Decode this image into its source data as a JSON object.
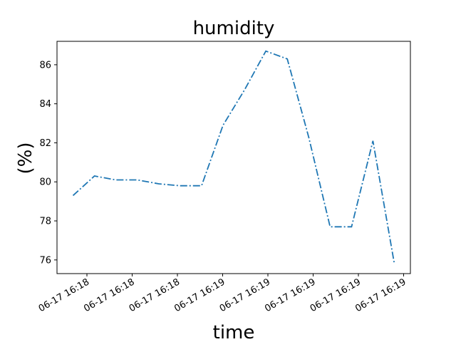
{
  "chart_data": {
    "type": "line",
    "title": "humidity",
    "xlabel": "time",
    "ylabel": "(%)",
    "x_tick_labels": [
      "06-17 16:18",
      "06-17 16:18",
      "06-17 16:18",
      "06-17 16:19",
      "06-17 16:19",
      "06-17 16:19",
      "06-17 16:19",
      "06-17 16:19"
    ],
    "y_ticks": [
      76,
      78,
      80,
      82,
      84,
      86
    ],
    "ylim": [
      75.3,
      87.2
    ],
    "grid": false,
    "series": [
      {
        "line_style": "dash-dot",
        "color": "#1f77b4",
        "values": [
          79.3,
          80.3,
          80.1,
          80.1,
          79.9,
          79.8,
          79.8,
          82.9,
          84.7,
          86.7,
          86.3,
          82.3,
          77.7,
          77.7,
          82.1,
          75.8
        ]
      }
    ]
  }
}
